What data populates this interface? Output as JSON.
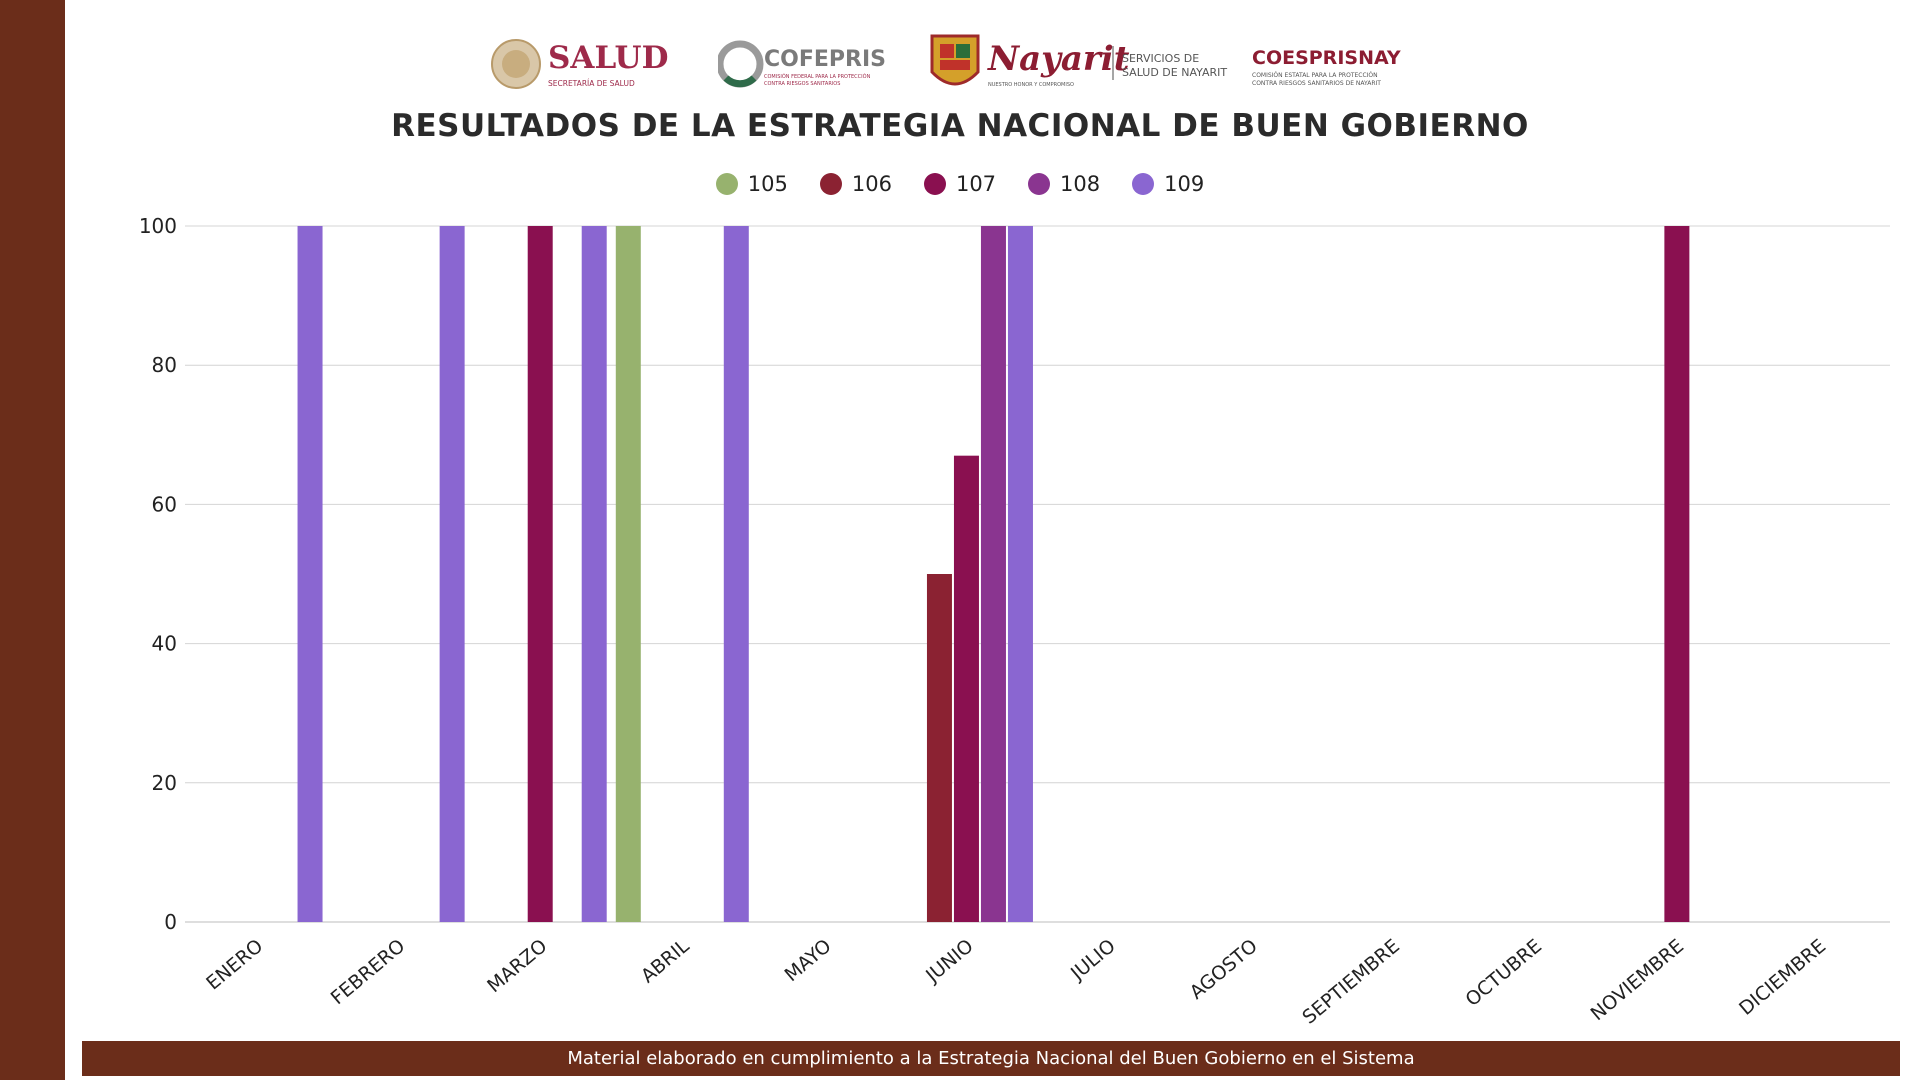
{
  "logos": {
    "salud_main": "SALUD",
    "salud_sub": "SECRETARÍA DE SALUD",
    "cofepris_main": "COFEPRIS",
    "cofepris_sub1": "COMISIÓN FEDERAL PARA LA PROTECCIÓN",
    "cofepris_sub2": "CONTRA RIESGOS SANITARIOS",
    "nayarit_main": "Nayarit",
    "nayarit_sub": "NUESTRO HONOR Y COMPROMISO",
    "servicios_1": "SERVICIOS DE",
    "servicios_2": "SALUD DE NAYARIT",
    "coesprisnay_main": "COESPRISNAY",
    "coesprisnay_sub1": "COMISIÓN ESTATAL PARA LA PROTECCIÓN",
    "coesprisnay_sub2": "CONTRA RIESGOS SANITARIOS DE NAYARIT"
  },
  "footer": {
    "text": "Material elaborado en cumplimiento a la Estrategia Nacional  del Buen Gobierno en el Sistema"
  },
  "colors": {
    "band": "#6b2d1a",
    "grid": "#d4d4d4"
  },
  "chart_data": {
    "type": "bar",
    "title": "RESULTADOS DE LA ESTRATEGIA NACIONAL DE BUEN GOBIERNO",
    "categories": [
      "ENERO",
      "FEBRERO",
      "MARZO",
      "ABRIL",
      "MAYO",
      "JUNIO",
      "JULIO",
      "AGOSTO",
      "SEPTIEMBRE",
      "OCTUBRE",
      "NOVIEMBRE",
      "DICIEMBRE"
    ],
    "series": [
      {
        "name": "105",
        "color": "#97b26e",
        "values": [
          null,
          null,
          null,
          100,
          null,
          null,
          null,
          null,
          null,
          null,
          null,
          null
        ]
      },
      {
        "name": "106",
        "color": "#8b2232",
        "values": [
          null,
          null,
          null,
          null,
          null,
          50,
          null,
          null,
          null,
          null,
          null,
          null
        ]
      },
      {
        "name": "107",
        "color": "#8a1050",
        "values": [
          null,
          null,
          100,
          null,
          null,
          67,
          null,
          null,
          null,
          null,
          100,
          null
        ]
      },
      {
        "name": "108",
        "color": "#8a3590",
        "values": [
          null,
          null,
          null,
          null,
          null,
          100,
          null,
          null,
          null,
          null,
          null,
          null
        ]
      },
      {
        "name": "109",
        "color": "#8a66d1",
        "values": [
          100,
          100,
          100,
          100,
          null,
          100,
          null,
          null,
          null,
          null,
          null,
          null
        ]
      }
    ],
    "ylim": [
      0,
      100
    ],
    "yticks": [
      0,
      20,
      40,
      60,
      80,
      100
    ],
    "grid": true,
    "legend_position": "top",
    "xlabel": "",
    "ylabel": ""
  }
}
